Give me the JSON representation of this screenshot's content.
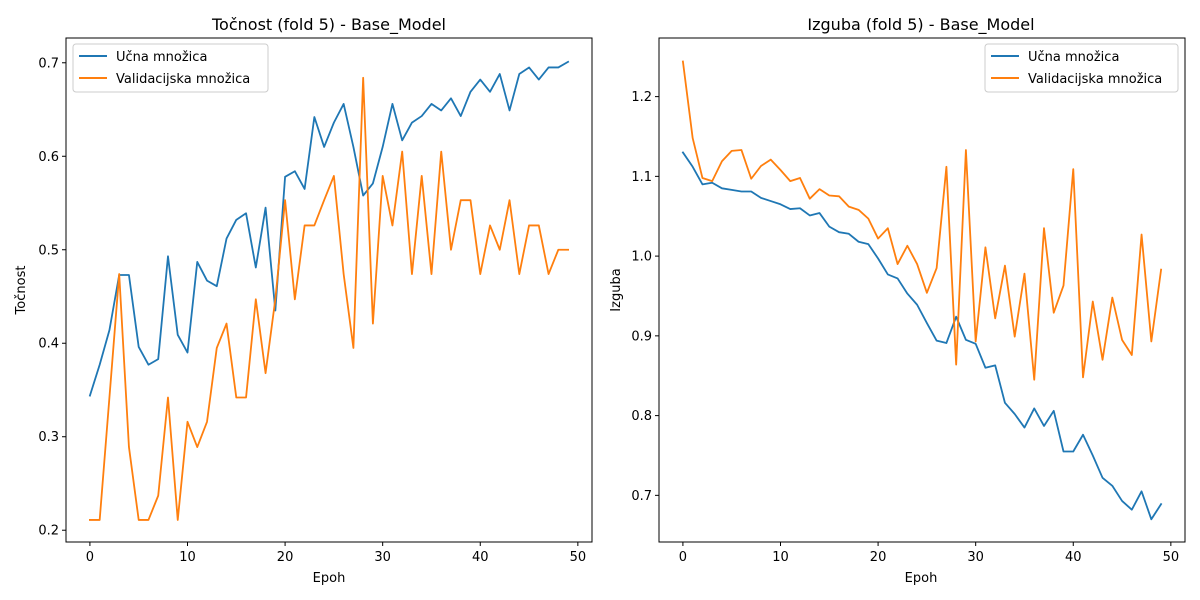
{
  "chart_data": [
    {
      "type": "line",
      "title": "Točnost (fold 5) - Base_Model",
      "xlabel": "Epoh",
      "ylabel": "Točnost",
      "xlim": [
        -2.45,
        51.45
      ],
      "ylim": [
        0.1874,
        0.7265
      ],
      "xticks": [
        0,
        10,
        20,
        30,
        40,
        50
      ],
      "yticks": [
        0.2,
        0.3,
        0.4,
        0.5,
        0.6,
        0.7
      ],
      "ytick_labels": [
        "0.2",
        "0.3",
        "0.4",
        "0.5",
        "0.6",
        "0.7"
      ],
      "legend": "top-left",
      "grid": false,
      "x": [
        0,
        1,
        2,
        3,
        4,
        5,
        6,
        7,
        8,
        9,
        10,
        11,
        12,
        13,
        14,
        15,
        16,
        17,
        18,
        19,
        20,
        21,
        22,
        23,
        24,
        25,
        26,
        27,
        28,
        29,
        30,
        31,
        32,
        33,
        34,
        35,
        36,
        37,
        38,
        39,
        40,
        41,
        42,
        43,
        44,
        45,
        46,
        47,
        48,
        49
      ],
      "series": [
        {
          "name": "Učna množica",
          "color": "#1f77b4",
          "values": [
            0.344,
            0.377,
            0.414,
            0.473,
            0.473,
            0.396,
            0.377,
            0.383,
            0.493,
            0.409,
            0.39,
            0.487,
            0.467,
            0.461,
            0.512,
            0.532,
            0.539,
            0.481,
            0.545,
            0.435,
            0.578,
            0.584,
            0.565,
            0.642,
            0.61,
            0.636,
            0.656,
            0.61,
            0.558,
            0.571,
            0.61,
            0.656,
            0.617,
            0.636,
            0.643,
            0.656,
            0.649,
            0.662,
            0.643,
            0.669,
            0.682,
            0.669,
            0.688,
            0.649,
            0.688,
            0.695,
            0.682,
            0.695,
            0.695,
            0.701
          ]
        },
        {
          "name": "Validacijska množica",
          "color": "#ff7f0e",
          "values": [
            0.211,
            0.211,
            0.342,
            0.474,
            0.289,
            0.211,
            0.211,
            0.237,
            0.342,
            0.211,
            0.316,
            0.289,
            0.316,
            0.395,
            0.421,
            0.342,
            0.342,
            0.447,
            0.368,
            0.447,
            0.553,
            0.447,
            0.526,
            0.526,
            0.553,
            0.579,
            0.474,
            0.395,
            0.684,
            0.421,
            0.579,
            0.526,
            0.605,
            0.474,
            0.579,
            0.474,
            0.605,
            0.5,
            0.553,
            0.553,
            0.474,
            0.526,
            0.5,
            0.553,
            0.474,
            0.526,
            0.526,
            0.474,
            0.5,
            0.5
          ]
        }
      ]
    },
    {
      "type": "line",
      "title": "Izguba (fold 5) - Base_Model",
      "xlabel": "Epoh",
      "ylabel": "Izguba",
      "xlim": [
        -2.45,
        51.45
      ],
      "ylim": [
        0.6415,
        1.2735
      ],
      "xticks": [
        0,
        10,
        20,
        30,
        40,
        50
      ],
      "yticks": [
        0.7,
        0.8,
        0.9,
        1.0,
        1.1,
        1.2
      ],
      "ytick_labels": [
        "0.7",
        "0.8",
        "0.9",
        "1.0",
        "1.1",
        "1.2"
      ],
      "legend": "top-right",
      "grid": false,
      "x": [
        0,
        1,
        2,
        3,
        4,
        5,
        6,
        7,
        8,
        9,
        10,
        11,
        12,
        13,
        14,
        15,
        16,
        17,
        18,
        19,
        20,
        21,
        22,
        23,
        24,
        25,
        26,
        27,
        28,
        29,
        30,
        31,
        32,
        33,
        34,
        35,
        36,
        37,
        38,
        39,
        40,
        41,
        42,
        43,
        44,
        45,
        46,
        47,
        48,
        49
      ],
      "series": [
        {
          "name": "Učna množica",
          "color": "#1f77b4",
          "values": [
            1.13,
            1.112,
            1.09,
            1.092,
            1.085,
            1.083,
            1.081,
            1.081,
            1.073,
            1.069,
            1.065,
            1.059,
            1.06,
            1.051,
            1.054,
            1.037,
            1.03,
            1.028,
            1.018,
            1.015,
            0.997,
            0.977,
            0.972,
            0.953,
            0.939,
            0.916,
            0.894,
            0.891,
            0.924,
            0.895,
            0.89,
            0.86,
            0.863,
            0.816,
            0.802,
            0.785,
            0.809,
            0.787,
            0.806,
            0.755,
            0.755,
            0.776,
            0.75,
            0.722,
            0.712,
            0.693,
            0.682,
            0.705,
            0.67,
            0.689
          ]
        },
        {
          "name": "Validacijska množica",
          "color": "#ff7f0e",
          "values": [
            1.244,
            1.148,
            1.098,
            1.094,
            1.119,
            1.132,
            1.133,
            1.097,
            1.113,
            1.121,
            1.108,
            1.094,
            1.098,
            1.072,
            1.084,
            1.076,
            1.075,
            1.062,
            1.058,
            1.047,
            1.022,
            1.035,
            0.99,
            1.013,
            0.99,
            0.954,
            0.985,
            1.112,
            0.864,
            1.133,
            0.893,
            1.011,
            0.922,
            0.988,
            0.899,
            0.978,
            0.845,
            1.035,
            0.929,
            0.963,
            1.109,
            0.848,
            0.943,
            0.87,
            0.948,
            0.895,
            0.876,
            1.027,
            0.893,
            0.983
          ]
        }
      ]
    }
  ]
}
